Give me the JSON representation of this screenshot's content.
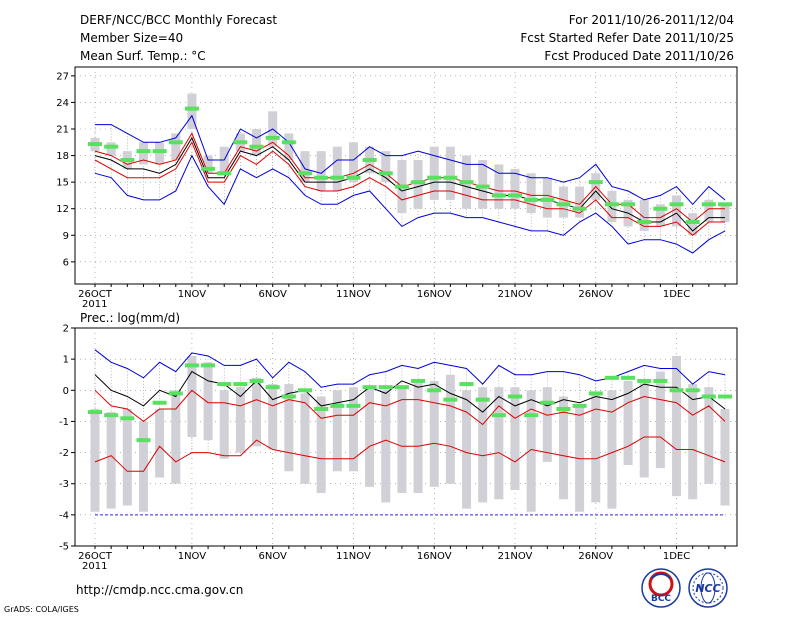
{
  "header": {
    "title": "DERF/NCC/BCC Monthly Forecast",
    "member_size": "Member Size=40",
    "variable": "Mean Surf. Temp.: °C",
    "period": "For 2011/10/26-2011/12/04",
    "start_date": "Fcst Started Refer Date 2011/10/25",
    "produced_date": "Fcst Produced Date 2011/10/26"
  },
  "footer": {
    "url": "http://cmdp.ncc.cma.gov.cn",
    "credit": "GrADS: COLA/IGES",
    "logo1_text": "BCC",
    "logo2_text": "NCC"
  },
  "colors": {
    "box": "#d0d0d6",
    "whisker": "#8c8c8c",
    "obs": "#5ae060",
    "upper": "#0000dd",
    "mean": "#000000",
    "inner": "#dd0000",
    "threshold": "#2a2acc",
    "gridline": "#888888"
  },
  "chart_data": [
    {
      "type": "line",
      "title": "Mean Surf. Temp.: °C",
      "x_labels": [
        "26OCT",
        "1NOV",
        "6NOV",
        "11NOV",
        "16NOV",
        "21NOV",
        "26NOV",
        "1DEC"
      ],
      "x_label_days": [
        0,
        6,
        11,
        16,
        21,
        26,
        31,
        36
      ],
      "year_label": "2011",
      "ylim": [
        3.5,
        28
      ],
      "yticks": [
        6,
        9,
        12,
        15,
        18,
        21,
        24,
        27
      ],
      "days": [
        0,
        1,
        2,
        3,
        4,
        5,
        6,
        7,
        8,
        9,
        10,
        11,
        12,
        13,
        14,
        15,
        16,
        17,
        18,
        19,
        20,
        21,
        22,
        23,
        24,
        25,
        26,
        27,
        28,
        29,
        30,
        31,
        32,
        33,
        34,
        35,
        36,
        37,
        38,
        39
      ],
      "series": [
        {
          "name": "max",
          "values": [
            21.5,
            21.5,
            20.5,
            19.5,
            19.5,
            20.0,
            22.5,
            17.5,
            17.5,
            21.0,
            20.0,
            21.0,
            19.5,
            16.5,
            16.0,
            17.5,
            17.5,
            19.0,
            18.0,
            18.0,
            18.5,
            18.0,
            17.5,
            17.0,
            17.0,
            16.0,
            16.0,
            15.5,
            15.5,
            15.0,
            15.5,
            17.0,
            14.5,
            14.0,
            13.0,
            13.5,
            14.5,
            12.5,
            14.5,
            13.0
          ]
        },
        {
          "name": "p84",
          "values": [
            18.5,
            18.0,
            17.0,
            17.5,
            17.0,
            17.5,
            20.5,
            16.0,
            16.0,
            19.0,
            18.5,
            19.5,
            18.0,
            15.5,
            15.5,
            15.5,
            16.0,
            17.0,
            16.0,
            14.5,
            15.0,
            15.5,
            15.5,
            15.0,
            14.5,
            14.0,
            14.0,
            13.5,
            13.5,
            13.0,
            12.5,
            14.5,
            12.5,
            12.5,
            11.0,
            11.0,
            12.0,
            10.5,
            12.0,
            12.0
          ]
        },
        {
          "name": "mean",
          "values": [
            18.0,
            17.5,
            16.5,
            16.5,
            16.0,
            17.0,
            20.0,
            15.5,
            15.5,
            18.5,
            18.0,
            19.0,
            17.5,
            15.0,
            15.0,
            15.0,
            15.5,
            16.5,
            15.5,
            14.0,
            14.5,
            15.0,
            15.0,
            14.5,
            14.0,
            13.5,
            13.5,
            13.0,
            13.0,
            12.5,
            12.0,
            14.0,
            12.0,
            11.5,
            10.5,
            10.5,
            11.5,
            9.5,
            11.0,
            11.0
          ]
        },
        {
          "name": "p16",
          "values": [
            17.5,
            16.5,
            15.5,
            15.5,
            15.5,
            16.5,
            19.5,
            15.0,
            15.0,
            18.0,
            17.0,
            18.5,
            17.0,
            14.5,
            14.0,
            14.0,
            14.5,
            15.5,
            14.5,
            13.0,
            13.5,
            14.0,
            14.0,
            13.5,
            13.0,
            13.0,
            13.0,
            12.5,
            12.0,
            12.0,
            11.5,
            13.0,
            11.0,
            11.0,
            10.0,
            10.0,
            10.5,
            9.0,
            10.5,
            10.5
          ]
        },
        {
          "name": "min",
          "values": [
            16.0,
            15.5,
            13.5,
            13.0,
            13.0,
            14.0,
            18.0,
            14.5,
            12.5,
            16.5,
            15.5,
            16.5,
            15.5,
            13.5,
            12.5,
            12.5,
            13.5,
            14.0,
            12.0,
            10.0,
            11.0,
            11.5,
            11.5,
            11.0,
            11.0,
            10.5,
            10.0,
            9.5,
            9.5,
            9.0,
            10.5,
            11.5,
            10.0,
            8.0,
            8.5,
            8.5,
            8.0,
            7.0,
            8.5,
            9.5
          ]
        }
      ],
      "boxes": {
        "low": [
          18.5,
          18,
          16.5,
          17,
          17,
          17.5,
          21,
          16,
          16,
          18.5,
          18,
          19,
          17.5,
          15,
          14,
          14,
          15,
          16,
          15,
          11.5,
          12,
          13,
          13,
          12,
          12,
          12,
          12,
          11.5,
          11,
          11,
          11,
          13,
          10.5,
          10,
          9.5,
          10,
          10,
          9,
          10.5,
          10.5
        ],
        "high": [
          20,
          19.5,
          18.5,
          19.5,
          19.5,
          20.5,
          25,
          18,
          19,
          20.5,
          21,
          23,
          20.5,
          18.5,
          18.5,
          19,
          19.5,
          19,
          18.5,
          17.5,
          17.5,
          19,
          19,
          18,
          17.5,
          17,
          16.5,
          16,
          15.5,
          14.5,
          14.5,
          16,
          14,
          13,
          13,
          12.5,
          13.5,
          11.5,
          13,
          12.5
        ]
      },
      "observed": [
        19.3,
        19.0,
        17.5,
        18.5,
        18.5,
        19.5,
        23.3,
        16.5,
        16.0,
        19.5,
        19.0,
        20.0,
        19.5,
        16.0,
        15.5,
        15.5,
        15.5,
        17.5,
        16.0,
        14.5,
        15.0,
        15.5,
        15.5,
        15.0,
        14.5,
        13.5,
        13.5,
        13.0,
        13.0,
        12.5,
        12.0,
        15.0,
        12.5,
        12.5,
        10.5,
        12.0,
        12.5,
        10.5,
        12.5,
        12.5
      ]
    },
    {
      "type": "line",
      "title": "Prec.: log(mm/d)",
      "x_labels": [
        "26OCT",
        "1NOV",
        "6NOV",
        "11NOV",
        "16NOV",
        "21NOV",
        "26NOV",
        "1DEC"
      ],
      "x_label_days": [
        0,
        6,
        11,
        16,
        21,
        26,
        31,
        36
      ],
      "year_label": "2011",
      "ylim": [
        -5,
        2
      ],
      "yticks": [
        -5,
        -4,
        -3,
        -2,
        -1,
        0,
        1,
        2
      ],
      "threshold": -4,
      "days": [
        0,
        1,
        2,
        3,
        4,
        5,
        6,
        7,
        8,
        9,
        10,
        11,
        12,
        13,
        14,
        15,
        16,
        17,
        18,
        19,
        20,
        21,
        22,
        23,
        24,
        25,
        26,
        27,
        28,
        29,
        30,
        31,
        32,
        33,
        34,
        35,
        36,
        37,
        38,
        39
      ],
      "series": [
        {
          "name": "max",
          "values": [
            1.3,
            0.9,
            0.7,
            0.4,
            0.9,
            0.6,
            1.2,
            1.1,
            0.8,
            0.8,
            1.0,
            0.4,
            0.9,
            0.6,
            0.1,
            0.2,
            0.2,
            0.5,
            0.6,
            0.8,
            0.7,
            0.9,
            0.8,
            0.7,
            0.2,
            0.8,
            0.5,
            0.5,
            0.6,
            0.6,
            0.5,
            0.3,
            0.4,
            0.6,
            0.8,
            0.7,
            0.7,
            0.2,
            0.6,
            0.5
          ]
        },
        {
          "name": "mean",
          "values": [
            0.5,
            0.0,
            -0.2,
            -0.5,
            0.0,
            -0.2,
            0.6,
            0.3,
            0.2,
            -0.2,
            0.3,
            -0.3,
            -0.1,
            0.0,
            -0.5,
            -0.4,
            -0.3,
            0.1,
            -0.1,
            0.3,
            0.1,
            0.2,
            -0.1,
            -0.3,
            -0.7,
            -0.2,
            -0.5,
            -0.3,
            -0.5,
            -0.3,
            -0.4,
            -0.2,
            -0.3,
            -0.1,
            0.2,
            0.1,
            0.1,
            -0.3,
            -0.2,
            -0.6
          ]
        },
        {
          "name": "inner",
          "values": [
            0.0,
            -0.5,
            -0.6,
            -1.0,
            -0.6,
            -0.6,
            0.0,
            -0.4,
            -0.4,
            -0.5,
            -0.3,
            -0.5,
            -0.3,
            -0.4,
            -0.9,
            -0.8,
            -0.8,
            -0.4,
            -0.5,
            -0.3,
            -0.3,
            -0.4,
            -0.5,
            -0.7,
            -1.1,
            -0.5,
            -0.9,
            -0.6,
            -0.8,
            -0.7,
            -0.8,
            -0.6,
            -0.7,
            -0.4,
            -0.2,
            -0.3,
            -0.4,
            -0.8,
            -0.5,
            -1.0
          ]
        },
        {
          "name": "min",
          "values": [
            -2.3,
            -2.1,
            -2.6,
            -2.6,
            -1.8,
            -2.3,
            -2.0,
            -2.0,
            -2.1,
            -2.1,
            -1.6,
            -1.9,
            -2.0,
            -2.1,
            -2.2,
            -2.2,
            -2.2,
            -1.8,
            -1.6,
            -1.8,
            -1.8,
            -1.7,
            -1.8,
            -2.0,
            -2.1,
            -2.0,
            -2.3,
            -1.9,
            -2.0,
            -2.1,
            -2.2,
            -2.2,
            -2.0,
            -1.8,
            -1.5,
            -1.5,
            -1.9,
            -1.9,
            -2.1,
            -2.3
          ]
        }
      ],
      "boxes": {
        "low": [
          -3.9,
          -3.8,
          -3.7,
          -3.9,
          -2.8,
          -3.0,
          -1.5,
          -1.6,
          -2.2,
          -2.0,
          -1.8,
          -1.9,
          -2.6,
          -3.0,
          -3.3,
          -2.6,
          -2.6,
          -3.1,
          -3.6,
          -3.3,
          -3.3,
          -3.1,
          -3.0,
          -3.8,
          -3.6,
          -3.5,
          -3.2,
          -3.9,
          -2.3,
          -3.5,
          -3.9,
          -3.6,
          -3.8,
          -2.4,
          -2.8,
          -2.5,
          -3.4,
          -3.5,
          -3.0,
          -3.7
        ],
        "high": [
          -0.6,
          -0.7,
          -0.6,
          -1.0,
          -0.6,
          0.0,
          1.1,
          0.9,
          0.0,
          0.1,
          0.4,
          0.2,
          0.2,
          -0.1,
          -0.2,
          0.0,
          0.1,
          0.1,
          0.0,
          0.1,
          0.3,
          0.3,
          0.5,
          0.0,
          0.1,
          0.1,
          0.1,
          0.0,
          0.1,
          -0.2,
          -0.5,
          -0.1,
          0.0,
          0.3,
          0.3,
          0.6,
          1.1,
          0.2,
          0.1,
          -0.6
        ]
      },
      "observed": [
        -0.7,
        -0.8,
        -0.9,
        -1.6,
        -0.4,
        -0.1,
        0.8,
        0.8,
        0.2,
        0.2,
        0.3,
        0.1,
        -0.2,
        0.0,
        -0.6,
        -0.5,
        -0.5,
        0.1,
        0.1,
        0.1,
        0.3,
        0.0,
        -0.3,
        0.2,
        -0.3,
        -0.8,
        -0.2,
        -0.8,
        -0.4,
        -0.6,
        -0.5,
        -0.1,
        0.4,
        0.4,
        0.3,
        0.3,
        0.0,
        0.0,
        -0.2,
        -0.2
      ]
    }
  ]
}
